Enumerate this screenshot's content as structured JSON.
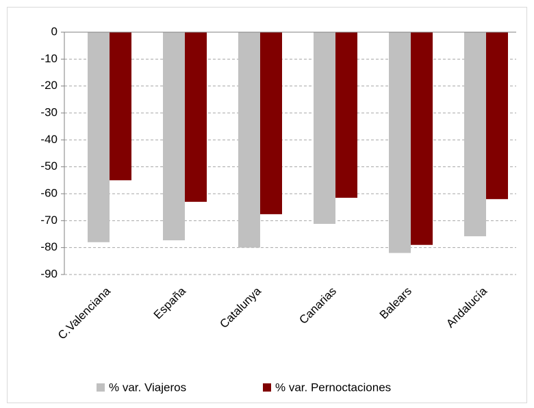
{
  "chart_data": {
    "type": "bar",
    "categories": [
      "C.Valenciana",
      "España",
      "Catalunya",
      "Canarias",
      "Balears",
      "Andalucía"
    ],
    "series": [
      {
        "name": "% var. Viajeros",
        "color": "#c0c0c0",
        "values": [
          -78,
          -77.3,
          -80,
          -71.2,
          -82,
          -75.8
        ]
      },
      {
        "name": "% var. Pernoctaciones",
        "color": "#800000",
        "values": [
          -55,
          -63,
          -67.6,
          -61.5,
          -79,
          -62
        ]
      }
    ],
    "ylim": [
      -90,
      0
    ],
    "yticks": [
      0,
      -10,
      -20,
      -30,
      -40,
      -50,
      -60,
      -70,
      -80,
      -90
    ],
    "grid": true,
    "legend": "bottom"
  }
}
